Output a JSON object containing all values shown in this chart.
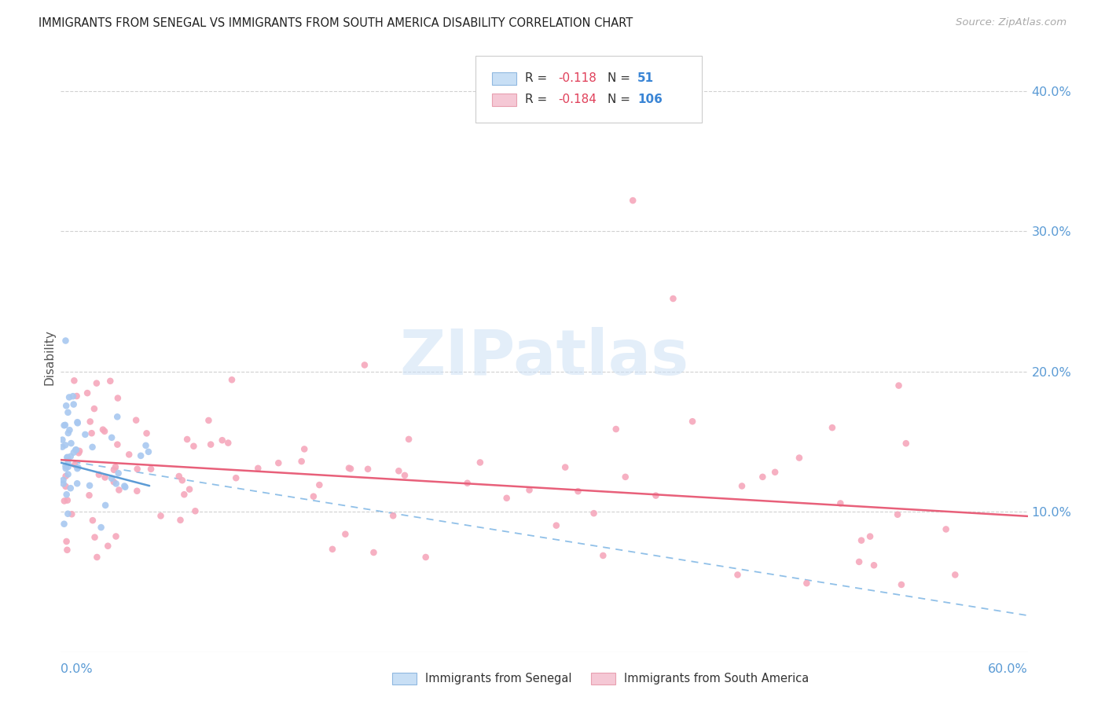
{
  "title": "IMMIGRANTS FROM SENEGAL VS IMMIGRANTS FROM SOUTH AMERICA DISABILITY CORRELATION CHART",
  "source": "Source: ZipAtlas.com",
  "ylabel": "Disability",
  "xlim": [
    0.0,
    0.6
  ],
  "ylim": [
    0.0,
    0.42
  ],
  "senegal_color": "#a8c8f0",
  "sa_color": "#f5a8bc",
  "senegal_line_color": "#5b9bd5",
  "sa_line_color": "#e8607a",
  "dashed_line_color": "#90c0e8",
  "background_color": "#ffffff",
  "grid_color": "#cccccc",
  "watermark_text": "ZIPatlas",
  "legend_box_senegal": "#c8dff5",
  "legend_box_sa": "#f5c8d5",
  "ytick_color": "#5b9bd5",
  "xtick_color": "#5b9bd5"
}
